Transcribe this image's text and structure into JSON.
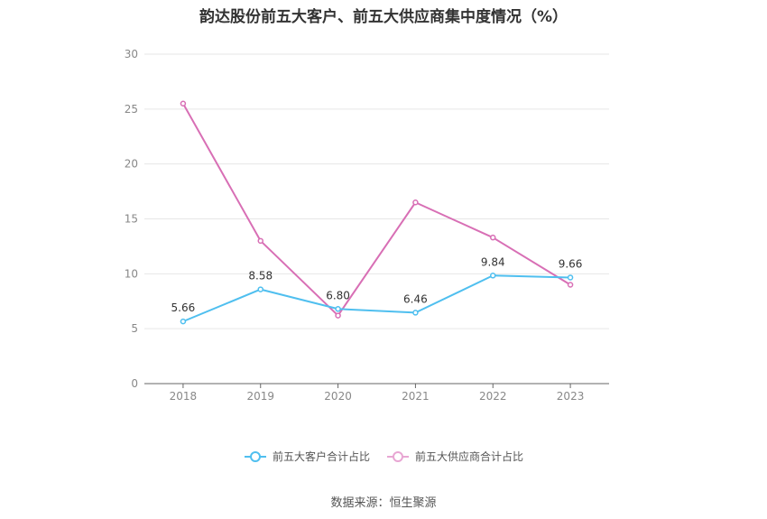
{
  "chart_data": {
    "type": "line",
    "title": "韵达股份前五大客户、前五大供应商集中度情况（%）",
    "categories": [
      "2018",
      "2019",
      "2020",
      "2021",
      "2022",
      "2023"
    ],
    "ylim": [
      0,
      30
    ],
    "yticks": [
      "0",
      "5",
      "10",
      "15",
      "20",
      "25",
      "30"
    ],
    "grid": true,
    "legend_position": "bottom",
    "series": [
      {
        "name": "前五大客户合计占比",
        "color": "#4fbfef",
        "values": [
          5.66,
          8.58,
          6.8,
          6.46,
          9.84,
          9.66
        ],
        "labels": [
          "5.66",
          "8.58",
          "6.80",
          "6.46",
          "9.84",
          "9.66"
        ]
      },
      {
        "name": "前五大供应商合计占比",
        "color": "#d86fb5",
        "values": [
          25.5,
          13.0,
          6.2,
          16.5,
          13.3,
          9.0
        ]
      }
    ]
  },
  "source": "数据来源：恒生聚源"
}
